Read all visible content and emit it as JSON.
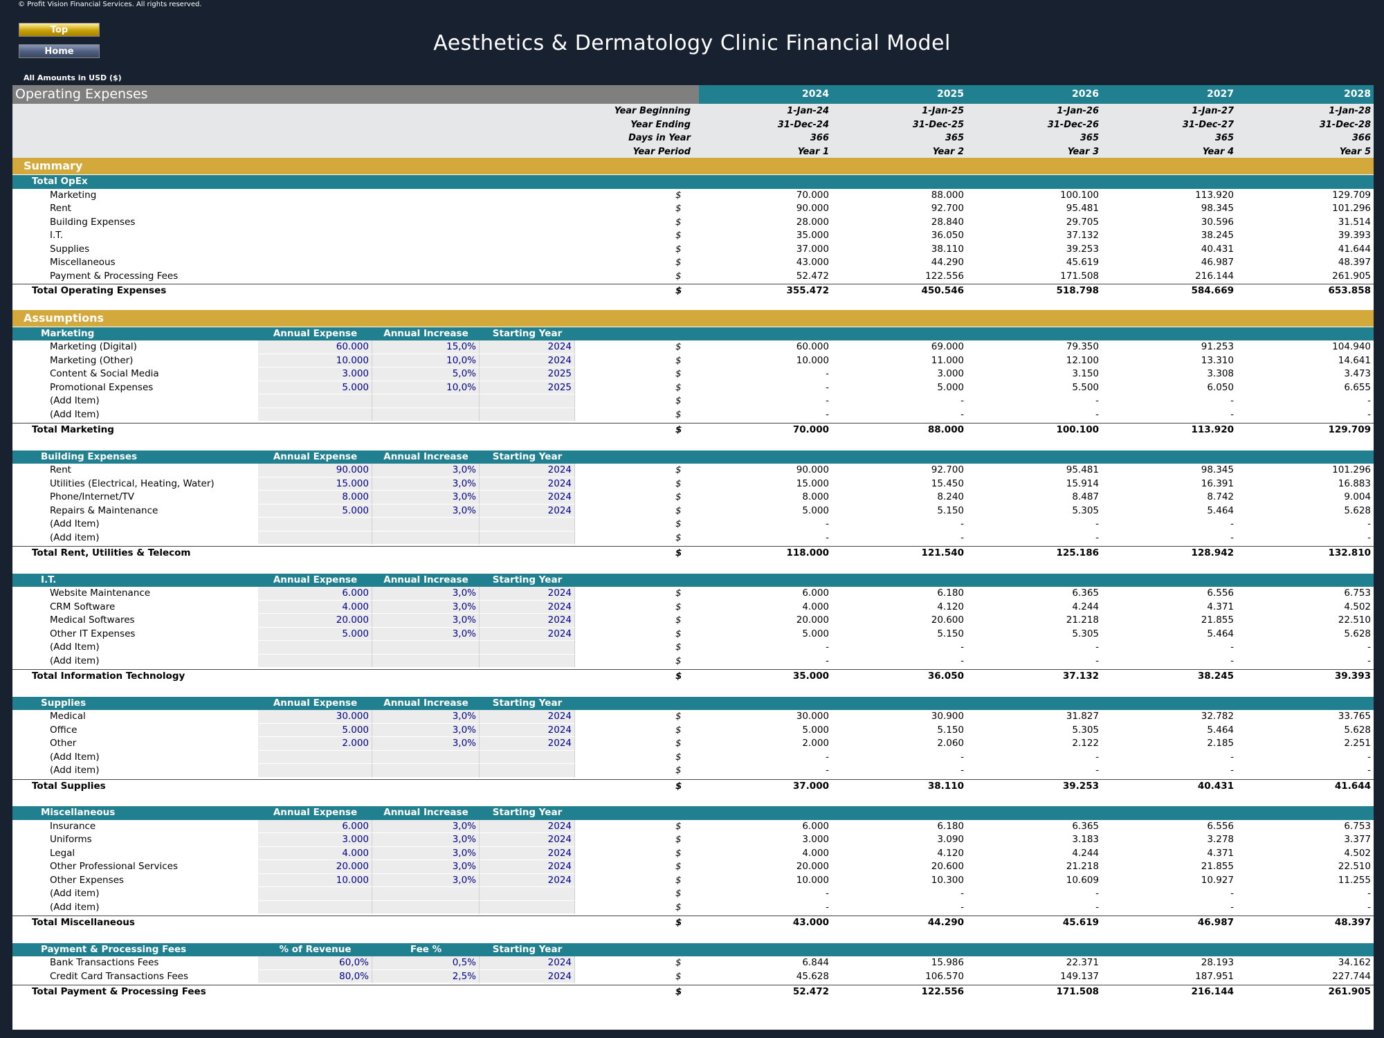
{
  "copyright": "© Profit Vision Financial Services. All rights reserved.",
  "nav": {
    "top_label": "Top",
    "home_label": "Home"
  },
  "title": "Aesthetics & Dermatology Clinic Financial Model",
  "amounts_note": "All Amounts in  USD ($)",
  "colors": {
    "background": "#17212f",
    "teal": "#21808f",
    "gold": "#d2a93a",
    "grey_header": "#7f7f7f",
    "input_text": "#00008b"
  },
  "opex_title": "Operating Expenses",
  "years": [
    "2024",
    "2025",
    "2026",
    "2027",
    "2028"
  ],
  "header_rows": [
    {
      "label": "Year Beginning",
      "values": [
        "1-Jan-24",
        "1-Jan-25",
        "1-Jan-26",
        "1-Jan-27",
        "1-Jan-28"
      ]
    },
    {
      "label": "Year Ending",
      "values": [
        "31-Dec-24",
        "31-Dec-25",
        "31-Dec-26",
        "31-Dec-27",
        "31-Dec-28"
      ]
    },
    {
      "label": "Days in Year",
      "values": [
        "366",
        "365",
        "365",
        "365",
        "366"
      ]
    },
    {
      "label": "Year Period",
      "values": [
        "Year 1",
        "Year 2",
        "Year 3",
        "Year 4",
        "Year 5"
      ]
    }
  ],
  "summary": {
    "title": "Summary",
    "group_label": "Total OpEx",
    "rows": [
      {
        "label": "Marketing",
        "unit": "$",
        "values": [
          "70.000",
          "88.000",
          "100.100",
          "113.920",
          "129.709"
        ]
      },
      {
        "label": "Rent",
        "unit": "$",
        "values": [
          "90.000",
          "92.700",
          "95.481",
          "98.345",
          "101.296"
        ]
      },
      {
        "label": "Building Expenses",
        "unit": "$",
        "values": [
          "28.000",
          "28.840",
          "29.705",
          "30.596",
          "31.514"
        ]
      },
      {
        "label": "I.T.",
        "unit": "$",
        "values": [
          "35.000",
          "36.050",
          "37.132",
          "38.245",
          "39.393"
        ]
      },
      {
        "label": "Supplies",
        "unit": "$",
        "values": [
          "37.000",
          "38.110",
          "39.253",
          "40.431",
          "41.644"
        ]
      },
      {
        "label": "Miscellaneous",
        "unit": "$",
        "values": [
          "43.000",
          "44.290",
          "45.619",
          "46.987",
          "48.397"
        ]
      },
      {
        "label": "Payment & Processing Fees",
        "unit": "$",
        "values": [
          "52.472",
          "122.556",
          "171.508",
          "216.144",
          "261.905"
        ]
      }
    ],
    "total": {
      "label": "Total Operating Expenses",
      "unit": "$",
      "values": [
        "355.472",
        "450.546",
        "518.798",
        "584.669",
        "653.858"
      ]
    }
  },
  "assumptions_title": "Assumptions",
  "sections": [
    {
      "title": "Marketing",
      "col1": "Annual Expense",
      "col2": "Annual Increase",
      "col3": "Starting Year",
      "rows": [
        {
          "label": "Marketing (Digital)",
          "a": "60.000",
          "b": "15,0%",
          "c": "2024",
          "unit": "$",
          "values": [
            "60.000",
            "69.000",
            "79.350",
            "91.253",
            "104.940"
          ]
        },
        {
          "label": "Marketing (Other)",
          "a": "10.000",
          "b": "10,0%",
          "c": "2024",
          "unit": "$",
          "values": [
            "10.000",
            "11.000",
            "12.100",
            "13.310",
            "14.641"
          ]
        },
        {
          "label": "Content & Social Media",
          "a": "3.000",
          "b": "5,0%",
          "c": "2025",
          "unit": "$",
          "values": [
            "-",
            "3.000",
            "3.150",
            "3.308",
            "3.473"
          ]
        },
        {
          "label": "Promotional Expenses",
          "a": "5.000",
          "b": "10,0%",
          "c": "2025",
          "unit": "$",
          "values": [
            "-",
            "5.000",
            "5.500",
            "6.050",
            "6.655"
          ]
        },
        {
          "label": "(Add Item)",
          "a": "",
          "b": "",
          "c": "",
          "unit": "$",
          "values": [
            "-",
            "-",
            "-",
            "-",
            "-"
          ]
        },
        {
          "label": "(Add Item)",
          "a": "",
          "b": "",
          "c": "",
          "unit": "$",
          "values": [
            "-",
            "-",
            "-",
            "-",
            "-"
          ]
        }
      ],
      "total": {
        "label": "Total Marketing",
        "unit": "$",
        "values": [
          "70.000",
          "88.000",
          "100.100",
          "113.920",
          "129.709"
        ]
      }
    },
    {
      "title": "Building Expenses",
      "col1": "Annual Expense",
      "col2": "Annual Increase",
      "col3": "Starting Year",
      "rows": [
        {
          "label": "Rent",
          "a": "90.000",
          "b": "3,0%",
          "c": "2024",
          "unit": "$",
          "values": [
            "90.000",
            "92.700",
            "95.481",
            "98.345",
            "101.296"
          ]
        },
        {
          "label": "Utilities (Electrical, Heating, Water)",
          "a": "15.000",
          "b": "3,0%",
          "c": "2024",
          "unit": "$",
          "values": [
            "15.000",
            "15.450",
            "15.914",
            "16.391",
            "16.883"
          ]
        },
        {
          "label": "Phone/Internet/TV",
          "a": "8.000",
          "b": "3,0%",
          "c": "2024",
          "unit": "$",
          "values": [
            "8.000",
            "8.240",
            "8.487",
            "8.742",
            "9.004"
          ]
        },
        {
          "label": "Repairs & Maintenance",
          "a": "5.000",
          "b": "3,0%",
          "c": "2024",
          "unit": "$",
          "values": [
            "5.000",
            "5.150",
            "5.305",
            "5.464",
            "5.628"
          ]
        },
        {
          "label": "(Add Item)",
          "a": "",
          "b": "",
          "c": "",
          "unit": "$",
          "values": [
            "-",
            "-",
            "-",
            "-",
            "-"
          ]
        },
        {
          "label": "(Add item)",
          "a": "",
          "b": "",
          "c": "",
          "unit": "$",
          "values": [
            "-",
            "-",
            "-",
            "-",
            "-"
          ]
        }
      ],
      "total": {
        "label": "Total Rent, Utilities & Telecom",
        "unit": "$",
        "values": [
          "118.000",
          "121.540",
          "125.186",
          "128.942",
          "132.810"
        ]
      }
    },
    {
      "title": "I.T.",
      "col1": "Annual Expense",
      "col2": "Annual Increase",
      "col3": "Starting Year",
      "rows": [
        {
          "label": "Website Maintenance",
          "a": "6.000",
          "b": "3,0%",
          "c": "2024",
          "unit": "$",
          "values": [
            "6.000",
            "6.180",
            "6.365",
            "6.556",
            "6.753"
          ]
        },
        {
          "label": "CRM Software",
          "a": "4.000",
          "b": "3,0%",
          "c": "2024",
          "unit": "$",
          "values": [
            "4.000",
            "4.120",
            "4.244",
            "4.371",
            "4.502"
          ]
        },
        {
          "label": "Medical Softwares",
          "a": "20.000",
          "b": "3,0%",
          "c": "2024",
          "unit": "$",
          "values": [
            "20.000",
            "20.600",
            "21.218",
            "21.855",
            "22.510"
          ]
        },
        {
          "label": "Other IT Expenses",
          "a": "5.000",
          "b": "3,0%",
          "c": "2024",
          "unit": "$",
          "values": [
            "5.000",
            "5.150",
            "5.305",
            "5.464",
            "5.628"
          ]
        },
        {
          "label": "(Add Item)",
          "a": "",
          "b": "",
          "c": "",
          "unit": "$",
          "values": [
            "-",
            "-",
            "-",
            "-",
            "-"
          ]
        },
        {
          "label": "(Add item)",
          "a": "",
          "b": "",
          "c": "",
          "unit": "$",
          "values": [
            "-",
            "-",
            "-",
            "-",
            "-"
          ]
        }
      ],
      "total": {
        "label": "Total Information Technology",
        "unit": "$",
        "values": [
          "35.000",
          "36.050",
          "37.132",
          "38.245",
          "39.393"
        ]
      }
    },
    {
      "title": "Supplies",
      "col1": "Annual Expense",
      "col2": "Annual Increase",
      "col3": "Starting Year",
      "rows": [
        {
          "label": "Medical",
          "a": "30.000",
          "b": "3,0%",
          "c": "2024",
          "unit": "$",
          "values": [
            "30.000",
            "30.900",
            "31.827",
            "32.782",
            "33.765"
          ]
        },
        {
          "label": "Office",
          "a": "5.000",
          "b": "3,0%",
          "c": "2024",
          "unit": "$",
          "values": [
            "5.000",
            "5.150",
            "5.305",
            "5.464",
            "5.628"
          ]
        },
        {
          "label": "Other",
          "a": "2.000",
          "b": "3,0%",
          "c": "2024",
          "unit": "$",
          "values": [
            "2.000",
            "2.060",
            "2.122",
            "2.185",
            "2.251"
          ]
        },
        {
          "label": "(Add Item)",
          "a": "",
          "b": "",
          "c": "",
          "unit": "$",
          "values": [
            "-",
            "-",
            "-",
            "-",
            "-"
          ]
        },
        {
          "label": "(Add item)",
          "a": "",
          "b": "",
          "c": "",
          "unit": "$",
          "values": [
            "-",
            "-",
            "-",
            "-",
            "-"
          ]
        }
      ],
      "total": {
        "label": "Total Supplies",
        "unit": "$",
        "values": [
          "37.000",
          "38.110",
          "39.253",
          "40.431",
          "41.644"
        ]
      }
    },
    {
      "title": "Miscellaneous",
      "col1": "Annual Expense",
      "col2": "Annual Increase",
      "col3": "Starting Year",
      "rows": [
        {
          "label": "Insurance",
          "a": "6.000",
          "b": "3,0%",
          "c": "2024",
          "unit": "$",
          "values": [
            "6.000",
            "6.180",
            "6.365",
            "6.556",
            "6.753"
          ]
        },
        {
          "label": "Uniforms",
          "a": "3.000",
          "b": "3,0%",
          "c": "2024",
          "unit": "$",
          "values": [
            "3.000",
            "3.090",
            "3.183",
            "3.278",
            "3.377"
          ]
        },
        {
          "label": "Legal",
          "a": "4.000",
          "b": "3,0%",
          "c": "2024",
          "unit": "$",
          "values": [
            "4.000",
            "4.120",
            "4.244",
            "4.371",
            "4.502"
          ]
        },
        {
          "label": "Other Professional Services",
          "a": "20.000",
          "b": "3,0%",
          "c": "2024",
          "unit": "$",
          "values": [
            "20.000",
            "20.600",
            "21.218",
            "21.855",
            "22.510"
          ]
        },
        {
          "label": "Other Expenses",
          "a": "10.000",
          "b": "3,0%",
          "c": "2024",
          "unit": "$",
          "values": [
            "10.000",
            "10.300",
            "10.609",
            "10.927",
            "11.255"
          ]
        },
        {
          "label": "(Add item)",
          "a": "",
          "b": "",
          "c": "",
          "unit": "$",
          "values": [
            "-",
            "-",
            "-",
            "-",
            "-"
          ]
        },
        {
          "label": "(Add item)",
          "a": "",
          "b": "",
          "c": "",
          "unit": "$",
          "values": [
            "-",
            "-",
            "-",
            "-",
            "-"
          ]
        }
      ],
      "total": {
        "label": "Total Miscellaneous",
        "unit": "$",
        "values": [
          "43.000",
          "44.290",
          "45.619",
          "46.987",
          "48.397"
        ]
      }
    },
    {
      "title": "Payment & Processing Fees",
      "col1": "% of Revenue",
      "col2": "Fee %",
      "col3": "Starting Year",
      "rows": [
        {
          "label": "Bank Transactions Fees",
          "a": "60,0%",
          "b": "0,5%",
          "c": "2024",
          "unit": "$",
          "values": [
            "6.844",
            "15.986",
            "22.371",
            "28.193",
            "34.162"
          ]
        },
        {
          "label": "Credit Card Transactions Fees",
          "a": "80,0%",
          "b": "2,5%",
          "c": "2024",
          "unit": "$",
          "values": [
            "45.628",
            "106.570",
            "149.137",
            "187.951",
            "227.744"
          ]
        }
      ],
      "total": {
        "label": "Total Payment & Processing Fees",
        "unit": "$",
        "values": [
          "52.472",
          "122.556",
          "171.508",
          "216.144",
          "261.905"
        ]
      }
    }
  ]
}
